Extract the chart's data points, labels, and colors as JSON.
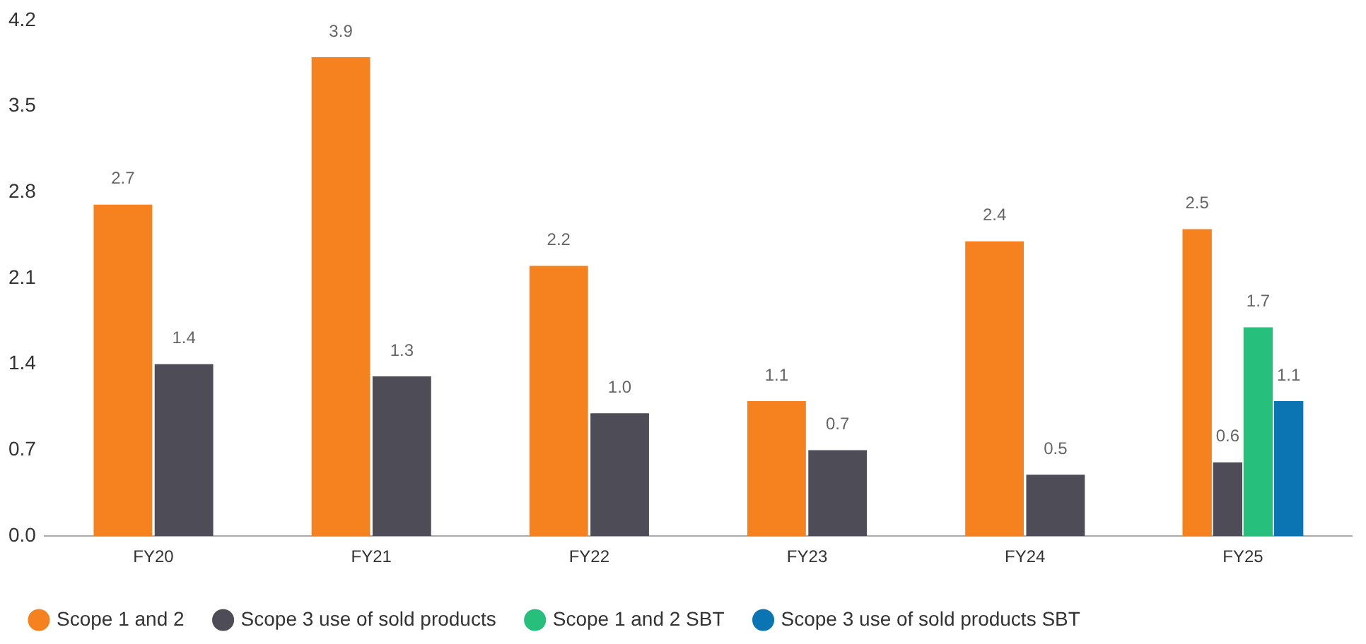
{
  "chart_data": {
    "type": "bar",
    "categories": [
      "FY20",
      "FY21",
      "FY22",
      "FY23",
      "FY24",
      "FY25"
    ],
    "series": [
      {
        "name": "Scope 1 and 2",
        "color": "#f5821f",
        "values": [
          2.7,
          3.9,
          2.2,
          1.1,
          2.4,
          2.5
        ],
        "value_labels": [
          "2.7",
          "3.9",
          "2.2",
          "1.1",
          "2.4",
          "2.5"
        ]
      },
      {
        "name": "Scope 3 use of sold products",
        "color": "#4e4d57",
        "values": [
          1.4,
          1.3,
          1.0,
          0.7,
          0.5,
          0.6
        ],
        "value_labels": [
          "1.4",
          "1.3",
          "1.0",
          "0.7",
          "0.5",
          "0.6"
        ]
      },
      {
        "name": "Scope 1 and 2 SBT",
        "color": "#27bf7c",
        "values": [
          null,
          null,
          null,
          null,
          null,
          1.7
        ],
        "value_labels": [
          null,
          null,
          null,
          null,
          null,
          "1.7"
        ]
      },
      {
        "name": "Scope 3 use of sold products SBT",
        "color": "#0b75b3",
        "values": [
          null,
          null,
          null,
          null,
          null,
          1.1
        ],
        "value_labels": [
          null,
          null,
          null,
          null,
          null,
          "1.1"
        ]
      }
    ],
    "ylim": [
      0,
      4.2
    ],
    "yticks": [
      {
        "value": 0,
        "label": "0.0"
      },
      0.7,
      1.4,
      2.1,
      2.8,
      3.5,
      4.2
    ],
    "grid": false,
    "legend": "bottom left"
  }
}
